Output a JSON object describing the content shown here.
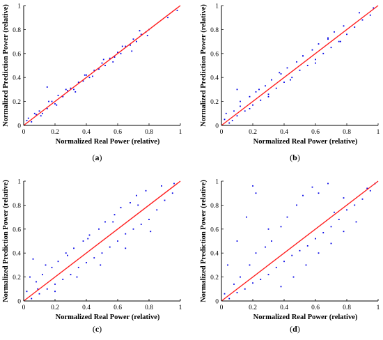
{
  "chart_data": [
    {
      "panel": "a",
      "type": "scatter",
      "xlabel": "Normalized Real Power (relative)",
      "ylabel": "Normalized Prediction Power (relative)",
      "xlim": [
        0,
        1
      ],
      "ylim": [
        0,
        1
      ],
      "xticks": [
        "0",
        "0.2",
        "0.4",
        "0.6",
        "0.8",
        "1"
      ],
      "yticks": [
        "0",
        "0.2",
        "0.4",
        "0.6",
        "0.8",
        "1"
      ],
      "caption": {
        "open": "(",
        "letter": "a",
        "close": ")"
      },
      "reference_line": {
        "x": [
          0,
          1
        ],
        "y": [
          0,
          1
        ],
        "color": "#ff2020"
      },
      "points_color": "#0000e6",
      "x": [
        0.02,
        0.05,
        0.08,
        0.1,
        0.12,
        0.15,
        0.18,
        0.2,
        0.22,
        0.25,
        0.28,
        0.3,
        0.32,
        0.35,
        0.38,
        0.4,
        0.42,
        0.45,
        0.48,
        0.5,
        0.52,
        0.55,
        0.58,
        0.6,
        0.62,
        0.65,
        0.68,
        0.7,
        0.72,
        0.75,
        0.78,
        0.8,
        0.03,
        0.07,
        0.11,
        0.16,
        0.21,
        0.27,
        0.33,
        0.39,
        0.44,
        0.51,
        0.57,
        0.63,
        0.69,
        0.74,
        0.79,
        0.92,
        0.98,
        0.15
      ],
      "y": [
        0.04,
        0.03,
        0.09,
        0.12,
        0.1,
        0.14,
        0.2,
        0.18,
        0.25,
        0.24,
        0.29,
        0.31,
        0.3,
        0.36,
        0.37,
        0.42,
        0.4,
        0.46,
        0.47,
        0.52,
        0.5,
        0.56,
        0.57,
        0.61,
        0.6,
        0.66,
        0.67,
        0.72,
        0.7,
        0.76,
        0.78,
        0.8,
        0.06,
        0.1,
        0.08,
        0.2,
        0.17,
        0.3,
        0.28,
        0.42,
        0.41,
        0.55,
        0.53,
        0.66,
        0.62,
        0.79,
        0.75,
        0.9,
        0.96,
        0.32
      ]
    },
    {
      "panel": "b",
      "type": "scatter",
      "xlabel": "Normalized Real Power (relative)",
      "ylabel": "Normalized Prediction Power (relative)",
      "xlim": [
        0,
        1
      ],
      "ylim": [
        0,
        1
      ],
      "xticks": [
        "0",
        "0.2",
        "0.4",
        "0.6",
        "0.8",
        "1"
      ],
      "yticks": [
        "0",
        "0.2",
        "0.4",
        "0.6",
        "0.8",
        "1"
      ],
      "caption": {
        "open": "(",
        "letter": "b",
        "close": ")"
      },
      "reference_line": {
        "x": [
          0,
          1
        ],
        "y": [
          0,
          1
        ],
        "color": "#ff2020"
      },
      "points_color": "#0000e6",
      "x": [
        0.02,
        0.05,
        0.08,
        0.1,
        0.12,
        0.15,
        0.18,
        0.2,
        0.22,
        0.25,
        0.28,
        0.3,
        0.32,
        0.35,
        0.38,
        0.4,
        0.42,
        0.45,
        0.48,
        0.5,
        0.52,
        0.55,
        0.58,
        0.6,
        0.62,
        0.65,
        0.68,
        0.7,
        0.72,
        0.75,
        0.78,
        0.8,
        0.85,
        0.9,
        0.95,
        0.03,
        0.07,
        0.12,
        0.18,
        0.24,
        0.3,
        0.37,
        0.44,
        0.52,
        0.6,
        0.68,
        0.76,
        0.88,
        0.97,
        0.1
      ],
      "y": [
        0.05,
        0.02,
        0.12,
        0.08,
        0.16,
        0.12,
        0.24,
        0.17,
        0.28,
        0.21,
        0.33,
        0.26,
        0.38,
        0.31,
        0.43,
        0.36,
        0.48,
        0.4,
        0.53,
        0.46,
        0.58,
        0.5,
        0.63,
        0.55,
        0.68,
        0.6,
        0.73,
        0.65,
        0.78,
        0.7,
        0.83,
        0.76,
        0.82,
        0.88,
        0.92,
        0.1,
        0.04,
        0.2,
        0.14,
        0.3,
        0.24,
        0.44,
        0.38,
        0.58,
        0.52,
        0.72,
        0.7,
        0.94,
        0.98,
        0.3
      ]
    },
    {
      "panel": "c",
      "type": "scatter",
      "xlabel": "Normalized Real Power (relative)",
      "ylabel": "Normalized Prediction Power (relative)",
      "xlim": [
        0,
        1
      ],
      "ylim": [
        0,
        1
      ],
      "xticks": [
        "0",
        "0.2",
        "0.4",
        "0.6",
        "0.8",
        "1"
      ],
      "yticks": [
        "0",
        "0.2",
        "0.4",
        "0.6",
        "0.8",
        "1"
      ],
      "caption": {
        "open": "(",
        "letter": "c",
        "close": ")"
      },
      "reference_line": {
        "x": [
          0,
          1
        ],
        "y": [
          0,
          1
        ],
        "color": "#ff2020"
      },
      "points_color": "#0000e6",
      "x": [
        0.02,
        0.05,
        0.08,
        0.1,
        0.12,
        0.15,
        0.18,
        0.2,
        0.22,
        0.25,
        0.28,
        0.3,
        0.32,
        0.35,
        0.38,
        0.4,
        0.42,
        0.45,
        0.48,
        0.5,
        0.52,
        0.55,
        0.58,
        0.6,
        0.62,
        0.65,
        0.68,
        0.7,
        0.72,
        0.75,
        0.78,
        0.8,
        0.85,
        0.9,
        0.95,
        0.04,
        0.09,
        0.14,
        0.2,
        0.27,
        0.34,
        0.41,
        0.49,
        0.57,
        0.65,
        0.73,
        0.81,
        0.88,
        0.96,
        0.06
      ],
      "y": [
        0.08,
        0.02,
        0.16,
        0.06,
        0.22,
        0.1,
        0.28,
        0.14,
        0.33,
        0.18,
        0.38,
        0.22,
        0.44,
        0.28,
        0.5,
        0.32,
        0.55,
        0.36,
        0.6,
        0.4,
        0.66,
        0.45,
        0.72,
        0.5,
        0.78,
        0.56,
        0.82,
        0.6,
        0.88,
        0.64,
        0.92,
        0.68,
        0.76,
        0.84,
        0.9,
        0.2,
        0.1,
        0.3,
        0.08,
        0.4,
        0.2,
        0.52,
        0.3,
        0.66,
        0.44,
        0.8,
        0.58,
        0.96,
        0.98,
        0.35
      ]
    },
    {
      "panel": "d",
      "type": "scatter",
      "xlabel": "Normalized Real Power (relative)",
      "ylabel": "Normalized Prediction Power (relative)",
      "xlim": [
        0,
        1
      ],
      "ylim": [
        0,
        1
      ],
      "xticks": [
        "0",
        "0.2",
        "0.4",
        "0.6",
        "0.8",
        "1"
      ],
      "yticks": [
        "0",
        "0.2",
        "0.4",
        "0.6",
        "0.8",
        "1"
      ],
      "caption": {
        "open": "(",
        "letter": "d",
        "close": ")"
      },
      "reference_line": {
        "x": [
          0,
          1
        ],
        "y": [
          0,
          1
        ],
        "color": "#ff2020"
      },
      "points_color": "#0000e6",
      "x": [
        0.02,
        0.05,
        0.08,
        0.1,
        0.12,
        0.15,
        0.18,
        0.2,
        0.22,
        0.25,
        0.28,
        0.3,
        0.32,
        0.35,
        0.38,
        0.4,
        0.42,
        0.45,
        0.48,
        0.5,
        0.52,
        0.55,
        0.58,
        0.6,
        0.62,
        0.65,
        0.68,
        0.7,
        0.72,
        0.75,
        0.78,
        0.8,
        0.85,
        0.9,
        0.95,
        0.04,
        0.1,
        0.16,
        0.22,
        0.3,
        0.38,
        0.46,
        0.54,
        0.62,
        0.7,
        0.78,
        0.86,
        0.93,
        0.98,
        0.2
      ],
      "y": [
        0.06,
        0.02,
        0.14,
        0.07,
        0.2,
        0.1,
        0.3,
        0.15,
        0.4,
        0.18,
        0.45,
        0.22,
        0.5,
        0.28,
        0.62,
        0.33,
        0.7,
        0.38,
        0.8,
        0.42,
        0.88,
        0.46,
        0.95,
        0.52,
        0.9,
        0.57,
        0.98,
        0.62,
        0.74,
        0.68,
        0.86,
        0.76,
        0.8,
        0.85,
        0.92,
        0.3,
        0.5,
        0.7,
        0.9,
        0.6,
        0.12,
        0.2,
        0.3,
        0.4,
        0.48,
        0.58,
        0.66,
        0.94,
        0.98,
        0.96
      ]
    }
  ]
}
